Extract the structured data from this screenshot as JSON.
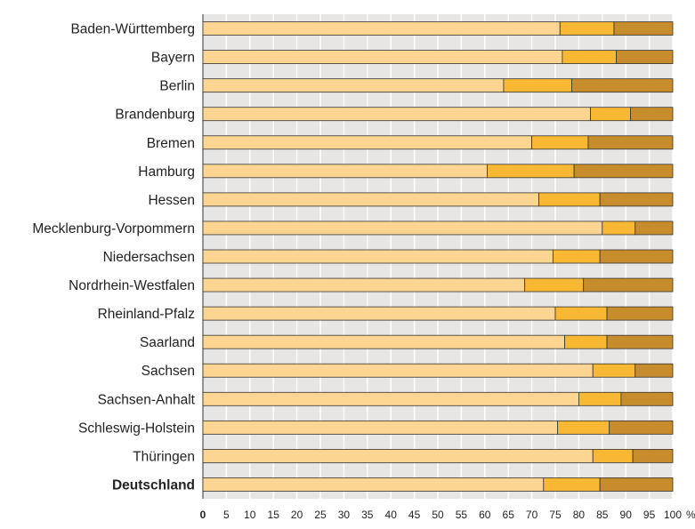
{
  "chart_data": {
    "type": "bar",
    "orientation": "horizontal",
    "stacked": true,
    "categories": [
      "Baden-Württemberg",
      "Bayern",
      "Berlin",
      "Brandenburg",
      "Bremen",
      "Hamburg",
      "Hessen",
      "Mecklenburg-Vorpommern",
      "Niedersachsen",
      "Nordrhein-Westfalen",
      "Rheinland-Pfalz",
      "Saarland",
      "Sachsen",
      "Sachsen-Anhalt",
      "Schleswig-Holstein",
      "Thüringen",
      "Deutschland"
    ],
    "bold_categories": [
      "Deutschland"
    ],
    "series": [
      {
        "color": "#fdd592",
        "values": [
          76,
          76.5,
          64,
          82.5,
          70,
          60.5,
          71.5,
          85,
          74.5,
          68.5,
          75,
          77,
          83,
          80,
          75.5,
          83,
          72.5
        ]
      },
      {
        "color": "#f9b834",
        "values": [
          11.5,
          11.5,
          14.5,
          8.5,
          12,
          18.5,
          13,
          7,
          10,
          12.5,
          11,
          9,
          9,
          9,
          11,
          8.5,
          12
        ]
      },
      {
        "color": "#c78d2d",
        "values": [
          12.5,
          12,
          21.5,
          9,
          18,
          21,
          15.5,
          8,
          15.5,
          19,
          14,
          14,
          8,
          11,
          13.5,
          8.5,
          15.5
        ]
      }
    ],
    "x_ticks": [
      "0",
      "5",
      "10",
      "15",
      "20",
      "25",
      "30",
      "35",
      "40",
      "45",
      "50",
      "55",
      "60",
      "65",
      "70",
      "75",
      "80",
      "85",
      "90",
      "95",
      "100"
    ],
    "x_unit": "%",
    "xlim": [
      0,
      100
    ],
    "grid": true,
    "colors": {
      "background": "#e8e6e4",
      "gridline": "#ffffff",
      "bar_outline": "#333333"
    }
  }
}
